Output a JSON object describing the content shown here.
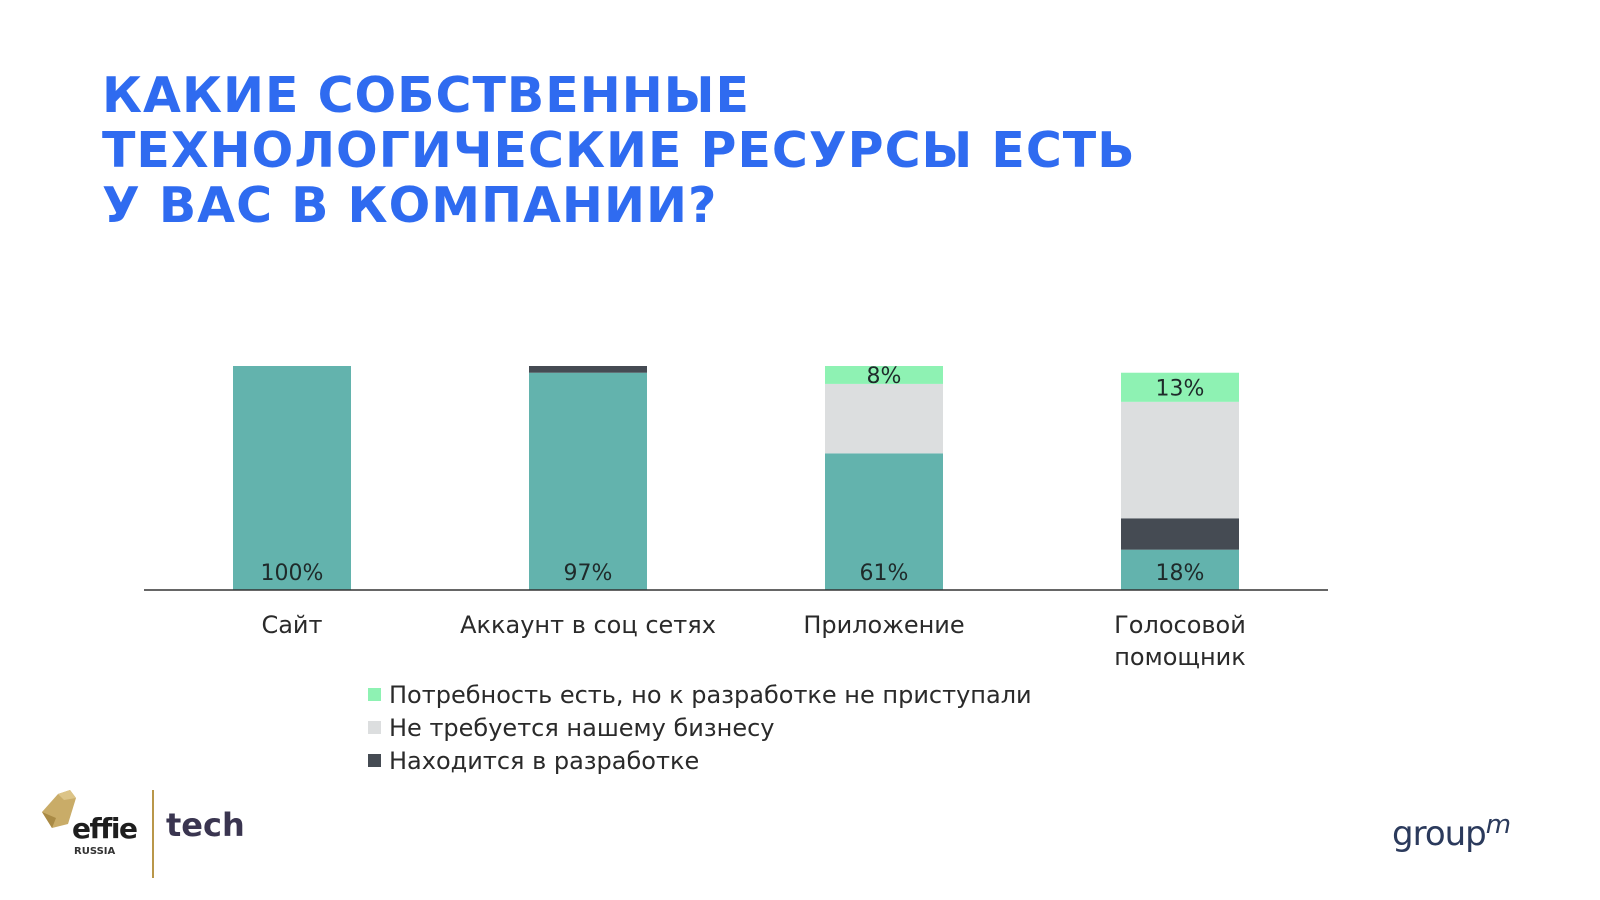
{
  "title": {
    "line1": "КАКИЕ СОБСТВЕННЫЕ",
    "line2": "ТЕХНОЛОГИЧЕСКИЕ РЕСУРСЫ ЕСТЬ",
    "line3": "У ВАС В КОМПАНИИ?"
  },
  "chart_data": {
    "type": "bar",
    "stacked": true,
    "normalized_percent": true,
    "categories": [
      [
        "Сайт"
      ],
      [
        "Аккаунт в соц сетях"
      ],
      [
        "Приложение"
      ],
      [
        "Голосовой",
        "помощник"
      ]
    ],
    "series": [
      {
        "key": "has",
        "values": [
          100,
          97,
          61,
          18
        ],
        "labels": [
          "100%",
          "97%",
          "61%",
          "18%"
        ],
        "color": "#63b3ad"
      },
      {
        "name": "Находится в разработке",
        "key": "dev",
        "values": [
          0,
          3,
          0,
          14
        ],
        "labels": [
          "",
          "",
          "",
          ""
        ],
        "color": "#454b53"
      },
      {
        "name": "Не требуется нашему бизнесу",
        "key": "notneeded",
        "values": [
          0,
          0,
          31,
          52
        ],
        "labels": [
          "",
          "",
          "",
          ""
        ],
        "color": "#dcdedf"
      },
      {
        "name": "Потребность есть, но к разработке не приступали",
        "key": "need",
        "values": [
          0,
          0,
          8,
          13
        ],
        "labels": [
          "",
          "",
          "8%",
          "13%"
        ],
        "color": "#8ef2b3"
      }
    ],
    "ylim": [
      0,
      100
    ],
    "grid": false,
    "legend_position": "bottom"
  },
  "legend": {
    "items": [
      {
        "label": "Потребность есть, но к разработке не приступали",
        "color": "#8ef2b3"
      },
      {
        "label": "Не требуется нашему бизнесу",
        "color": "#dcdedf"
      },
      {
        "label": "Находится в разработке",
        "color": "#454b53"
      }
    ]
  },
  "branding": {
    "effie": "effie",
    "russia": "RUSSIA",
    "tech": "tech",
    "groupm_main": "group",
    "groupm_sup": "m"
  },
  "colors": {
    "title": "#2f6bf0",
    "axis": "#333333"
  }
}
